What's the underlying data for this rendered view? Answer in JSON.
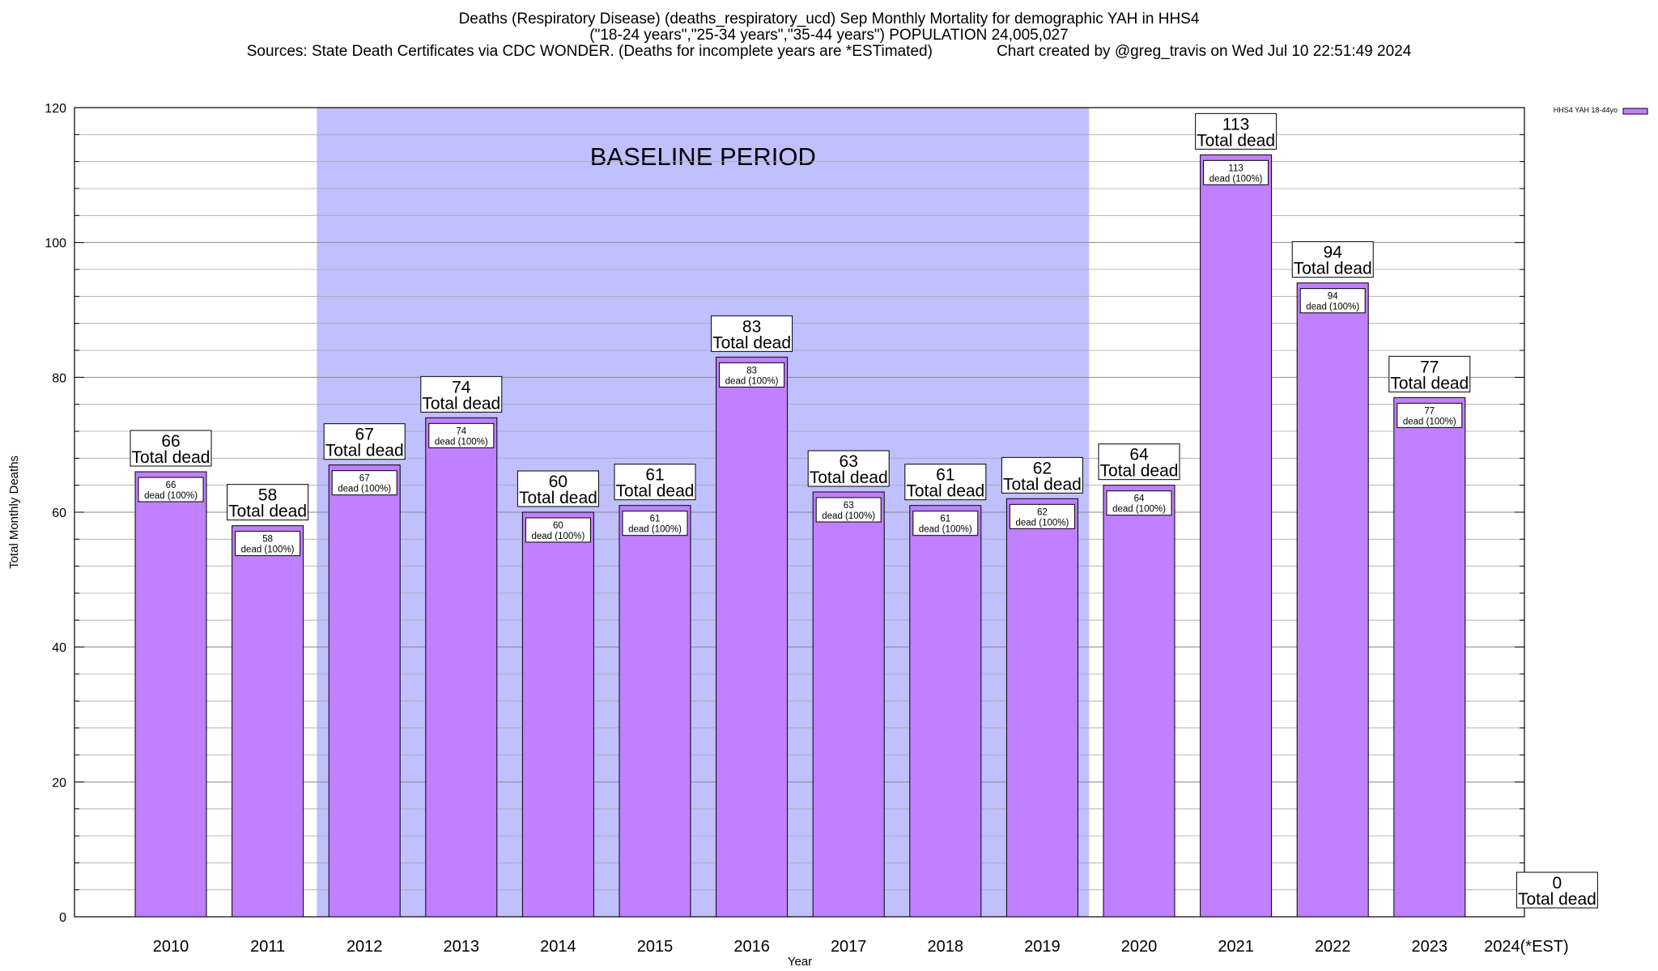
{
  "title": {
    "line1": "Deaths (Respiratory Disease) (deaths_respiratory_ucd) Sep Monthly Mortality for demographic YAH in HHS4",
    "line2": "(\"18-24 years\",\"25-34 years\",\"35-44 years\") POPULATION 24,005,027",
    "line3": "Sources: State Death Certificates via CDC WONDER. (Deaths for incomplete years are *ESTimated)               Chart created by @greg_travis on Wed Jul 10 22:51:49 2024"
  },
  "chart_data": {
    "type": "bar",
    "title": "Deaths (Respiratory Disease) (deaths_respiratory_ucd) Sep Monthly Mortality for demographic YAH in HHS4",
    "xlabel": "Year",
    "ylabel": "Total Monthly Deaths",
    "ylim": [
      0,
      120
    ],
    "yticks": [
      0,
      20,
      40,
      60,
      80,
      100,
      120
    ],
    "grid": true,
    "legend_position": "top-right",
    "bar_color": "#c080ff",
    "band_color": "#c0c0ff",
    "categories": [
      "2010",
      "2011",
      "2012",
      "2013",
      "2014",
      "2015",
      "2016",
      "2017",
      "2018",
      "2019",
      "2020",
      "2021",
      "2022",
      "2023",
      "2024(*EST)"
    ],
    "series": [
      {
        "name": "HHS4 YAH 18-44yo",
        "values": [
          66,
          58,
          67,
          74,
          60,
          61,
          83,
          63,
          61,
          62,
          64,
          113,
          94,
          77,
          0
        ]
      }
    ],
    "total_label": "Total dead",
    "inner_label": "dead (100%)",
    "annotations": [
      {
        "text": "BASELINE PERIOD",
        "x_start": "2012",
        "x_end": "2019"
      }
    ]
  }
}
